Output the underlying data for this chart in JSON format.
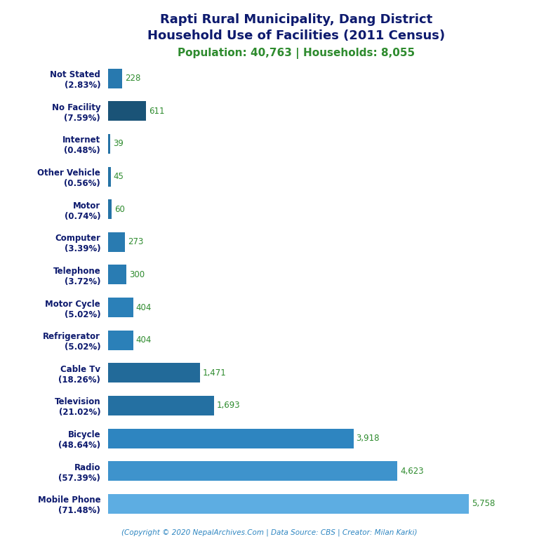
{
  "title_line1": "Rapti Rural Municipality, Dang District",
  "title_line2": "Household Use of Facilities (2011 Census)",
  "subtitle": "Population: 40,763 | Households: 8,055",
  "footer": "(Copyright © 2020 NepalArchives.Com | Data Source: CBS | Creator: Milan Karki)",
  "categories": [
    "Not Stated\n(2.83%)",
    "No Facility\n(7.59%)",
    "Internet\n(0.48%)",
    "Other Vehicle\n(0.56%)",
    "Motor\n(0.74%)",
    "Computer\n(3.39%)",
    "Telephone\n(3.72%)",
    "Motor Cycle\n(5.02%)",
    "Refrigerator\n(5.02%)",
    "Cable Tv\n(18.26%)",
    "Television\n(21.02%)",
    "Bicycle\n(48.64%)",
    "Radio\n(57.39%)",
    "Mobile Phone\n(71.48%)"
  ],
  "values": [
    228,
    611,
    39,
    45,
    60,
    273,
    300,
    404,
    404,
    1471,
    1693,
    3918,
    4623,
    5758
  ],
  "value_labels": [
    "228",
    "611",
    "39",
    "45",
    "60",
    "273",
    "300",
    "404",
    "404",
    "1,471",
    "1,693",
    "3,918",
    "4,623",
    "5,758"
  ],
  "title_color": "#0d1a6e",
  "subtitle_color": "#2e8b2e",
  "bar_colors": [
    "#2471a3",
    "#1f618d",
    "#2980b9",
    "#2980b9",
    "#2980b9",
    "#1f618d",
    "#1f618d",
    "#1a5276",
    "#1a5276",
    "#1f618d",
    "#1f618d",
    "#2e86c1",
    "#3498db",
    "#5dade2"
  ],
  "value_color": "#2e8b2e",
  "footer_color": "#2e86c1",
  "background_color": "#ffffff",
  "title_fontsize": 13,
  "subtitle_fontsize": 11,
  "label_fontsize": 8.5,
  "value_fontsize": 8.5,
  "footer_fontsize": 7.5
}
